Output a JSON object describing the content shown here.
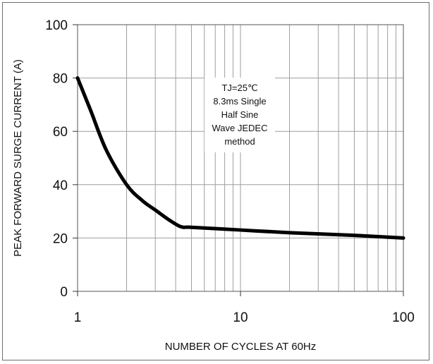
{
  "chart_data": {
    "type": "line",
    "x_scale": "log",
    "xlim": [
      1,
      100
    ],
    "ylim": [
      0,
      100
    ],
    "x_ticks": [
      1,
      10,
      100
    ],
    "y_ticks": [
      0,
      20,
      40,
      60,
      80,
      100
    ],
    "grid": true,
    "xlabel": "NUMBER OF CYCLES AT 60Hz",
    "ylabel": "PEAK FORWARD SURGE CURRENT (A)",
    "annotation": [
      "TJ=25℃",
      "8.3ms Single",
      "Half  Sine",
      "Wave JEDEC",
      "method"
    ],
    "series": [
      {
        "color": "#000000",
        "x": [
          1,
          1.2,
          1.5,
          2,
          2.5,
          3,
          3.6,
          4.2,
          4.5,
          5,
          10,
          20,
          50,
          100
        ],
        "y": [
          80,
          68,
          53,
          40,
          34,
          30.5,
          27,
          24.5,
          24,
          24,
          23,
          22,
          21,
          20
        ]
      }
    ]
  }
}
